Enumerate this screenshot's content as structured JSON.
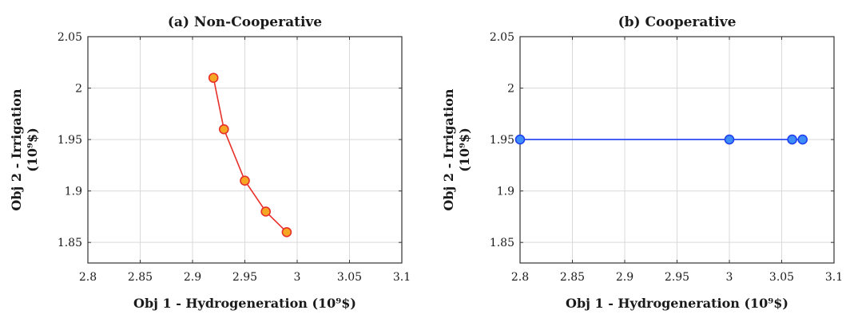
{
  "chart_data": [
    {
      "type": "line",
      "title": "(a) Non-Cooperative",
      "xlabel": "Obj 1 - Hydrogeneration (10⁹$)",
      "ylabel": "Obj 2 - Irrigation",
      "ylabel_unit": "(10⁹$)",
      "xlim": [
        2.8,
        3.1
      ],
      "ylim": [
        1.83,
        2.05
      ],
      "xticks": [
        2.8,
        2.85,
        2.9,
        2.95,
        3,
        3.05,
        3.1
      ],
      "xtick_labels": [
        "2.8",
        "2.85",
        "2.9",
        "2.95",
        "3",
        "3.05",
        "3.1"
      ],
      "yticks": [
        1.85,
        1.9,
        1.95,
        2,
        2.05
      ],
      "ytick_labels": [
        "1.85",
        "1.9",
        "1.95",
        "2",
        "2.05"
      ],
      "grid": true,
      "series": [
        {
          "x": [
            2.92,
            2.93,
            2.95,
            2.97,
            2.99
          ],
          "y": [
            2.01,
            1.96,
            1.91,
            1.88,
            1.86
          ],
          "line_color": "#e8302a",
          "marker_fill": "#f5a623",
          "marker_edge": "#e8302a"
        }
      ]
    },
    {
      "type": "line",
      "title": "(b) Cooperative",
      "xlabel": "Obj 1 - Hydrogeneration (10⁹$)",
      "ylabel": "Obj 2 - Irrigation",
      "ylabel_unit": "(10⁹$)",
      "xlim": [
        2.8,
        3.1
      ],
      "ylim": [
        1.83,
        2.05
      ],
      "xticks": [
        2.8,
        2.85,
        2.9,
        2.95,
        3,
        3.05,
        3.1
      ],
      "xtick_labels": [
        "2.8",
        "2.85",
        "2.9",
        "2.95",
        "3",
        "3.05",
        "3.1"
      ],
      "yticks": [
        1.85,
        1.9,
        1.95,
        2,
        2.05
      ],
      "ytick_labels": [
        "1.85",
        "1.9",
        "1.95",
        "2",
        "2.05"
      ],
      "grid": true,
      "series": [
        {
          "x": [
            2.8,
            3.0,
            3.06,
            3.07
          ],
          "y": [
            1.95,
            1.95,
            1.95,
            1.95
          ],
          "line_color": "#1f3ff0",
          "marker_fill": "#3f8ef7",
          "marker_edge": "#1f3ff0"
        }
      ]
    }
  ]
}
